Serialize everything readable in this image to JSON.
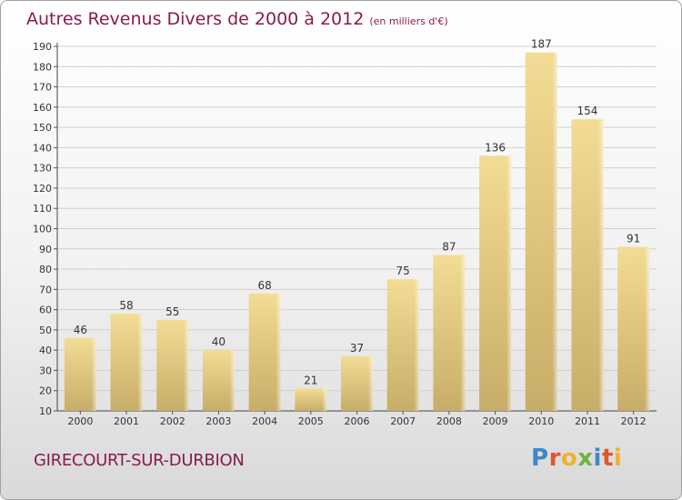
{
  "header": {
    "title": "Autres Revenus Divers de 2000 à 2012",
    "unit": "(en milliers d'€)"
  },
  "footer": {
    "place": "GIRECOURT-SUR-DURBION",
    "logo_text": "Proxiti"
  },
  "colors": {
    "title": "#8a1b4d",
    "bar_light": "#f3dc96",
    "bar_dark": "#c7ad68",
    "grid": "#d0d0d0"
  },
  "chart_data": {
    "type": "bar",
    "title": "Autres Revenus Divers de 2000 à 2012",
    "subtitle": "(en milliers d'€)",
    "categories": [
      "2000",
      "2001",
      "2002",
      "2003",
      "2004",
      "2005",
      "2006",
      "2007",
      "2008",
      "2009",
      "2010",
      "2011",
      "2012"
    ],
    "values": [
      46,
      58,
      55,
      40,
      68,
      21,
      37,
      75,
      87,
      136,
      187,
      154,
      91
    ],
    "ylim": [
      10,
      190
    ],
    "yticks": [
      10,
      20,
      30,
      40,
      50,
      60,
      70,
      80,
      90,
      100,
      110,
      120,
      130,
      140,
      150,
      160,
      170,
      180,
      190
    ],
    "grid": true,
    "data_labels": true
  }
}
